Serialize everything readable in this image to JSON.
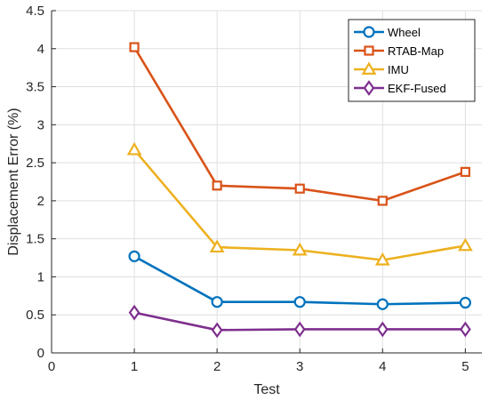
{
  "chart_data": {
    "type": "line",
    "xlabel": "Test",
    "ylabel": "Displacement Error (%)",
    "xlim": [
      0,
      5.2
    ],
    "ylim": [
      0,
      4.5
    ],
    "xticks": [
      0,
      1,
      2,
      3,
      4,
      5
    ],
    "yticks": [
      0,
      0.5,
      1,
      1.5,
      2,
      2.5,
      3,
      3.5,
      4,
      4.5
    ],
    "xtick_labels": [
      "0",
      "1",
      "2",
      "3",
      "4",
      "5"
    ],
    "ytick_labels": [
      "0",
      "0.5",
      "1",
      "1.5",
      "2",
      "2.5",
      "3",
      "3.5",
      "4",
      "4.5"
    ],
    "grid": true,
    "legend_position": "top-right",
    "x": [
      1,
      2,
      3,
      4,
      5
    ],
    "series": [
      {
        "name": "Wheel",
        "values": [
          1.27,
          0.67,
          0.67,
          0.64,
          0.66
        ],
        "color": "#0072BD",
        "marker": "circle"
      },
      {
        "name": "RTAB-Map",
        "values": [
          4.02,
          2.2,
          2.16,
          2.0,
          2.38
        ],
        "color": "#D95319",
        "marker": "square"
      },
      {
        "name": "IMU",
        "values": [
          2.67,
          1.39,
          1.35,
          1.22,
          1.41
        ],
        "color": "#EDB120",
        "marker": "triangle"
      },
      {
        "name": "EKF-Fused",
        "values": [
          0.53,
          0.3,
          0.31,
          0.31,
          0.31
        ],
        "color": "#7E2F8E",
        "marker": "diamond"
      }
    ]
  }
}
